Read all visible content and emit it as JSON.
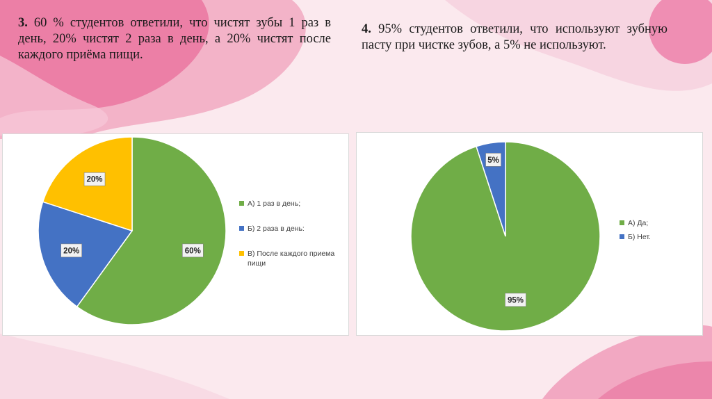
{
  "slide": {
    "text3": {
      "num": "3.",
      "body": " 60 % студентов ответили, что чистят зубы 1 раз в день, 20% чистят 2 раза в день, а 20% чистят после каждого приёма пищи."
    },
    "text4": {
      "num": "4.",
      "body": " 95% студентов ответили, что используют зубную пасту при чистке зубов, а 5% не используют."
    }
  },
  "colors": {
    "green": "#70ad47",
    "blue": "#4472c4",
    "yellow": "#ffc000"
  },
  "chart_data": [
    {
      "type": "pie",
      "categories": [
        "А) 1 раз в день;",
        "Б) 2 раза в день:",
        "В) После каждого приема пищи"
      ],
      "values": [
        60,
        20,
        20
      ],
      "data_labels": [
        "60%",
        "20%",
        "20%"
      ],
      "colors": [
        "#70ad47",
        "#4472c4",
        "#ffc000"
      ],
      "legend_position": "right"
    },
    {
      "type": "pie",
      "categories": [
        "А) Да;",
        "Б) Нет."
      ],
      "values": [
        95,
        5
      ],
      "data_labels": [
        "95%",
        "5%"
      ],
      "colors": [
        "#70ad47",
        "#4472c4"
      ],
      "legend_position": "right"
    }
  ]
}
